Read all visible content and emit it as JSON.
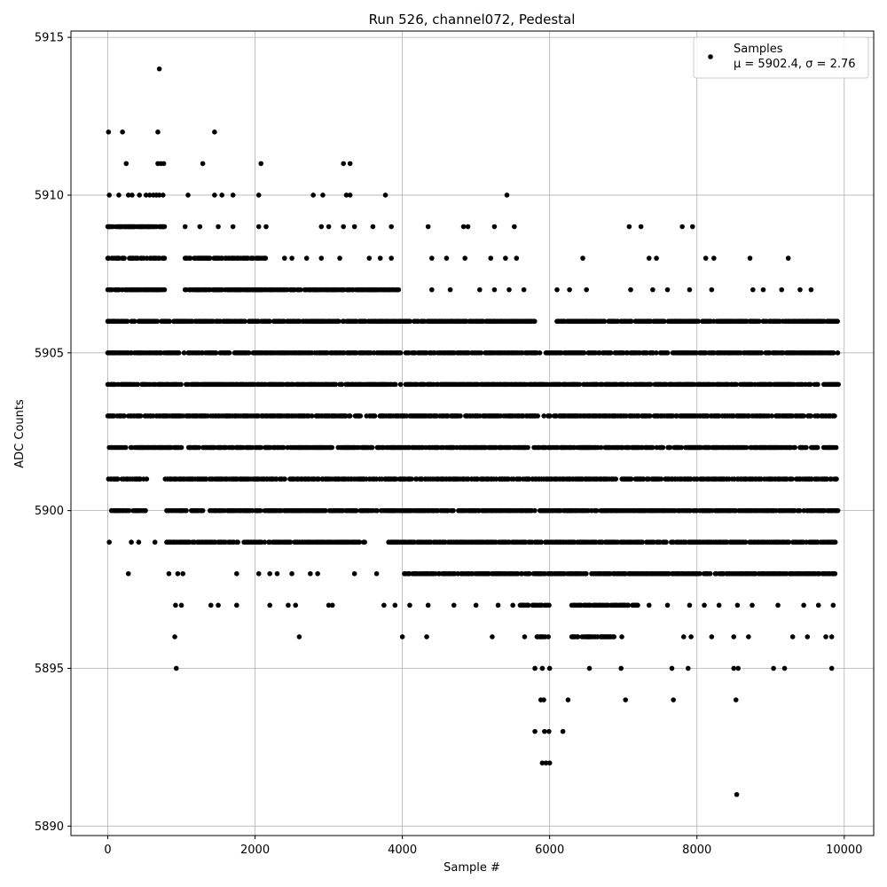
{
  "chart_data": {
    "type": "scatter",
    "title": "Run 526, channel072, Pedestal",
    "xlabel": "Sample #",
    "ylabel": "ADC Counts",
    "xlim": [
      -500,
      10400
    ],
    "ylim": [
      5889.7,
      5915.2
    ],
    "xticks": [
      0,
      2000,
      4000,
      6000,
      8000,
      10000
    ],
    "xtick_labels": [
      "0",
      "2000",
      "4000",
      "6000",
      "8000",
      "10000"
    ],
    "yticks": [
      5890,
      5895,
      5900,
      5905,
      5910,
      5915
    ],
    "ytick_labels": [
      "5890",
      "5895",
      "5900",
      "5905",
      "5910",
      "5915"
    ],
    "grid": true,
    "marker_color": "#000000",
    "legend": {
      "placement": "top-right",
      "entries": [
        {
          "name": "Samples",
          "stats": "μ = 5902.4, σ = 2.76"
        }
      ]
    },
    "series": [
      {
        "name": "Samples",
        "bands": [
          {
            "y": 5903,
            "ranges": [
              [
                0,
                9920
              ]
            ]
          },
          {
            "y": 5904,
            "ranges": [
              [
                0,
                5990
              ],
              [
                6000,
                9930
              ]
            ]
          },
          {
            "y": 5905,
            "ranges": [
              [
                0,
                5900
              ],
              [
                5950,
                9920
              ]
            ]
          },
          {
            "y": 5902,
            "ranges": [
              [
                20,
                9920
              ]
            ]
          },
          {
            "y": 5901,
            "ranges": [
              [
                10,
                540
              ],
              [
                780,
                9920
              ]
            ]
          },
          {
            "y": 5906,
            "ranges": [
              [
                0,
                5820
              ],
              [
                6100,
                9920
              ]
            ]
          },
          {
            "y": 5900,
            "ranges": [
              [
                50,
                520
              ],
              [
                800,
                9920
              ]
            ]
          },
          {
            "y": 5899,
            "ranges": [
              [
                800,
                3500
              ],
              [
                3800,
                6000
              ],
              [
                6000,
                9900
              ]
            ]
          },
          {
            "y": 5907,
            "ranges": [
              [
                0,
                780
              ],
              [
                1050,
                3950
              ]
            ]
          },
          {
            "y": 5908,
            "ranges": [
              [
                0,
                780
              ],
              [
                1050,
                2200
              ]
            ]
          },
          {
            "y": 5898,
            "ranges": [
              [
                4000,
                5600
              ],
              [
                5600,
                6500
              ],
              [
                6500,
                9900
              ]
            ]
          },
          {
            "y": 5909,
            "ranges": [
              [
                0,
                780
              ]
            ]
          },
          {
            "y": 5897,
            "ranges": [
              [
                5600,
                6000
              ],
              [
                6300,
                7200
              ]
            ]
          },
          {
            "y": 5896,
            "ranges": [
              [
                5800,
                6000
              ],
              [
                6300,
                6900
              ]
            ]
          }
        ],
        "points": [
          [
            700,
            5914
          ],
          [
            10,
            5912
          ],
          [
            200,
            5912
          ],
          [
            680,
            5912
          ],
          [
            1450,
            5912
          ],
          [
            250,
            5911
          ],
          [
            680,
            5911
          ],
          [
            720,
            5911
          ],
          [
            760,
            5911
          ],
          [
            1290,
            5911
          ],
          [
            2080,
            5911
          ],
          [
            3200,
            5911
          ],
          [
            3290,
            5911
          ],
          [
            20,
            5910
          ],
          [
            150,
            5910
          ],
          [
            280,
            5910
          ],
          [
            330,
            5910
          ],
          [
            430,
            5910
          ],
          [
            520,
            5910
          ],
          [
            570,
            5910
          ],
          [
            620,
            5910
          ],
          [
            660,
            5910
          ],
          [
            700,
            5910
          ],
          [
            750,
            5910
          ],
          [
            1090,
            5910
          ],
          [
            1450,
            5910
          ],
          [
            1550,
            5910
          ],
          [
            1700,
            5910
          ],
          [
            2050,
            5910
          ],
          [
            2790,
            5910
          ],
          [
            2920,
            5910
          ],
          [
            3240,
            5910
          ],
          [
            3290,
            5910
          ],
          [
            3770,
            5910
          ],
          [
            5420,
            5910
          ],
          [
            1050,
            5909
          ],
          [
            1250,
            5909
          ],
          [
            1500,
            5909
          ],
          [
            1700,
            5909
          ],
          [
            2050,
            5909
          ],
          [
            2150,
            5909
          ],
          [
            2900,
            5909
          ],
          [
            3000,
            5909
          ],
          [
            3200,
            5909
          ],
          [
            3350,
            5909
          ],
          [
            3600,
            5909
          ],
          [
            3850,
            5909
          ],
          [
            4350,
            5909
          ],
          [
            4830,
            5909
          ],
          [
            4890,
            5909
          ],
          [
            5250,
            5909
          ],
          [
            5520,
            5909
          ],
          [
            7080,
            5909
          ],
          [
            7240,
            5909
          ],
          [
            7800,
            5909
          ],
          [
            7940,
            5909
          ],
          [
            2400,
            5908
          ],
          [
            2500,
            5908
          ],
          [
            2700,
            5908
          ],
          [
            2900,
            5908
          ],
          [
            3150,
            5908
          ],
          [
            3550,
            5908
          ],
          [
            3700,
            5908
          ],
          [
            3850,
            5908
          ],
          [
            4400,
            5908
          ],
          [
            4600,
            5908
          ],
          [
            4850,
            5908
          ],
          [
            5200,
            5908
          ],
          [
            5400,
            5908
          ],
          [
            5550,
            5908
          ],
          [
            6450,
            5908
          ],
          [
            7350,
            5908
          ],
          [
            7450,
            5908
          ],
          [
            8120,
            5908
          ],
          [
            8230,
            5908
          ],
          [
            8720,
            5908
          ],
          [
            9240,
            5908
          ],
          [
            4400,
            5907
          ],
          [
            4650,
            5907
          ],
          [
            5050,
            5907
          ],
          [
            5250,
            5907
          ],
          [
            5450,
            5907
          ],
          [
            5650,
            5907
          ],
          [
            6100,
            5907
          ],
          [
            6270,
            5907
          ],
          [
            6500,
            5907
          ],
          [
            7100,
            5907
          ],
          [
            7400,
            5907
          ],
          [
            7600,
            5907
          ],
          [
            7900,
            5907
          ],
          [
            8200,
            5907
          ],
          [
            8760,
            5907
          ],
          [
            8900,
            5907
          ],
          [
            9150,
            5907
          ],
          [
            9400,
            5907
          ],
          [
            9550,
            5907
          ],
          [
            6200,
            5906
          ],
          [
            6500,
            5906
          ],
          [
            6800,
            5906
          ],
          [
            7100,
            5906
          ],
          [
            7350,
            5906
          ],
          [
            7700,
            5906
          ],
          [
            8000,
            5906
          ],
          [
            8420,
            5906
          ],
          [
            8600,
            5906
          ],
          [
            8900,
            5906
          ],
          [
            9200,
            5906
          ],
          [
            9500,
            5906
          ],
          [
            9800,
            5906
          ],
          [
            20,
            5899
          ],
          [
            320,
            5899
          ],
          [
            420,
            5899
          ],
          [
            640,
            5899
          ],
          [
            280,
            5898
          ],
          [
            830,
            5898
          ],
          [
            950,
            5898
          ],
          [
            1020,
            5898
          ],
          [
            1750,
            5898
          ],
          [
            2050,
            5898
          ],
          [
            2200,
            5898
          ],
          [
            2300,
            5898
          ],
          [
            2500,
            5898
          ],
          [
            2750,
            5898
          ],
          [
            2850,
            5898
          ],
          [
            3350,
            5898
          ],
          [
            3650,
            5898
          ],
          [
            920,
            5897
          ],
          [
            1000,
            5897
          ],
          [
            1400,
            5897
          ],
          [
            1500,
            5897
          ],
          [
            1750,
            5897
          ],
          [
            2200,
            5897
          ],
          [
            2450,
            5897
          ],
          [
            2550,
            5897
          ],
          [
            3000,
            5897
          ],
          [
            3050,
            5897
          ],
          [
            3750,
            5897
          ],
          [
            3900,
            5897
          ],
          [
            4100,
            5897
          ],
          [
            4350,
            5897
          ],
          [
            4700,
            5897
          ],
          [
            5000,
            5897
          ],
          [
            5300,
            5897
          ],
          [
            5500,
            5897
          ],
          [
            7350,
            5897
          ],
          [
            7600,
            5897
          ],
          [
            7900,
            5897
          ],
          [
            8100,
            5897
          ],
          [
            8300,
            5897
          ],
          [
            8550,
            5897
          ],
          [
            8750,
            5897
          ],
          [
            9100,
            5897
          ],
          [
            9450,
            5897
          ],
          [
            9650,
            5897
          ],
          [
            9850,
            5897
          ],
          [
            910,
            5896
          ],
          [
            2600,
            5896
          ],
          [
            4000,
            5896
          ],
          [
            4330,
            5896
          ],
          [
            5220,
            5896
          ],
          [
            5660,
            5896
          ],
          [
            6980,
            5896
          ],
          [
            7820,
            5896
          ],
          [
            7920,
            5896
          ],
          [
            8200,
            5896
          ],
          [
            8500,
            5896
          ],
          [
            8700,
            5896
          ],
          [
            9300,
            5896
          ],
          [
            9500,
            5896
          ],
          [
            9750,
            5896
          ],
          [
            9830,
            5896
          ],
          [
            930,
            5895
          ],
          [
            5800,
            5895
          ],
          [
            5900,
            5895
          ],
          [
            6000,
            5895
          ],
          [
            6540,
            5895
          ],
          [
            6970,
            5895
          ],
          [
            7660,
            5895
          ],
          [
            7880,
            5895
          ],
          [
            8500,
            5895
          ],
          [
            8560,
            5895
          ],
          [
            9040,
            5895
          ],
          [
            9190,
            5895
          ],
          [
            9830,
            5895
          ],
          [
            5880,
            5894
          ],
          [
            5920,
            5894
          ],
          [
            6250,
            5894
          ],
          [
            7030,
            5894
          ],
          [
            7680,
            5894
          ],
          [
            8530,
            5894
          ],
          [
            5800,
            5893
          ],
          [
            5930,
            5893
          ],
          [
            5990,
            5893
          ],
          [
            6180,
            5893
          ],
          [
            5900,
            5892
          ],
          [
            5950,
            5892
          ],
          [
            6000,
            5892
          ],
          [
            8540,
            5891
          ]
        ]
      }
    ]
  }
}
